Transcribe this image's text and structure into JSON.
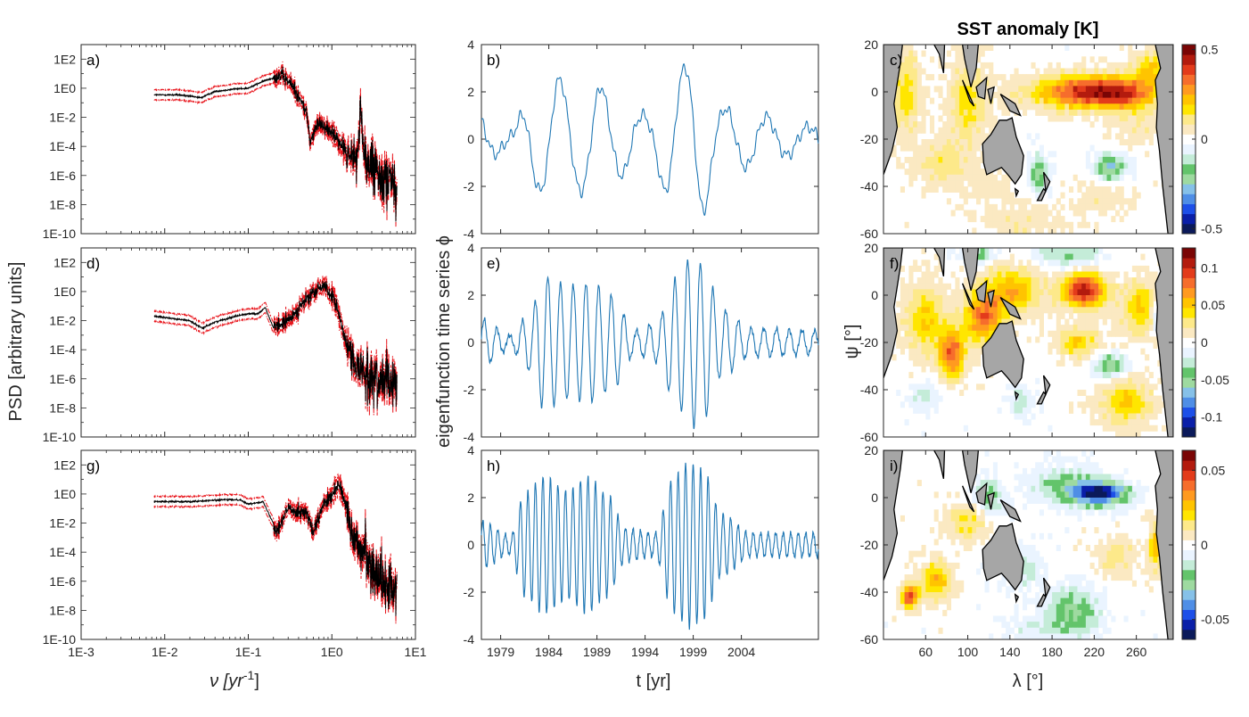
{
  "chart_data": {
    "psd": {
      "type": "line",
      "scale": "loglog",
      "xlabel": "ν [yr⁻¹]",
      "xlabel_main": "ν [yr",
      "xlabel_sup": "-1",
      "xlabel_close": "]",
      "ylabel": "PSD [arbitrary units]",
      "xlim": [
        0.001,
        10
      ],
      "ylim": [
        1e-10,
        1000
      ],
      "xticks": [
        0.001,
        0.01,
        0.1,
        1,
        10
      ],
      "xtick_labels": [
        "1E-3",
        "1E-2",
        "1E-1",
        "1E0",
        "1E1"
      ],
      "yticks": [
        1e-10,
        1e-08,
        1e-06,
        0.0001,
        0.01,
        1,
        100
      ],
      "ytick_labels": [
        "1E-10",
        "1E-8",
        "1E-6",
        "1E-4",
        "1E-2",
        "1E0",
        "1E2"
      ],
      "panels": [
        {
          "label": "a)",
          "knots": [
            [
              0.0075,
              0.35
            ],
            [
              0.015,
              0.35
            ],
            [
              0.027,
              0.22
            ],
            [
              0.04,
              0.6
            ],
            [
              0.07,
              0.9
            ],
            [
              0.1,
              1.0
            ],
            [
              0.15,
              3.0
            ],
            [
              0.25,
              8
            ],
            [
              0.35,
              1.2
            ],
            [
              0.5,
              0.02
            ],
            [
              0.55,
              0.0002
            ],
            [
              0.7,
              0.005
            ],
            [
              1.0,
              0.001
            ],
            [
              1.5,
              5e-05
            ],
            [
              2.0,
              1e-05
            ],
            [
              2.2,
              0.05
            ],
            [
              2.4,
              2e-05
            ],
            [
              3.0,
              2e-06
            ],
            [
              6.0,
              2e-07
            ]
          ]
        },
        {
          "label": "d)",
          "knots": [
            [
              0.0075,
              0.02
            ],
            [
              0.02,
              0.01
            ],
            [
              0.028,
              0.003
            ],
            [
              0.04,
              0.008
            ],
            [
              0.07,
              0.02
            ],
            [
              0.1,
              0.03
            ],
            [
              0.13,
              0.03
            ],
            [
              0.16,
              0.08
            ],
            [
              0.2,
              0.003
            ],
            [
              0.3,
              0.01
            ],
            [
              0.5,
              0.3
            ],
            [
              0.8,
              3.0
            ],
            [
              1.0,
              0.5
            ],
            [
              1.3,
              0.01
            ],
            [
              1.5,
              0.0001
            ],
            [
              2.0,
              1e-05
            ],
            [
              3.0,
              1e-06
            ],
            [
              6.0,
              5e-07
            ]
          ]
        },
        {
          "label": "g)",
          "knots": [
            [
              0.0075,
              0.3
            ],
            [
              0.02,
              0.3
            ],
            [
              0.05,
              0.4
            ],
            [
              0.08,
              0.4
            ],
            [
              0.1,
              0.2
            ],
            [
              0.15,
              0.3
            ],
            [
              0.22,
              0.003
            ],
            [
              0.3,
              0.1
            ],
            [
              0.5,
              0.05
            ],
            [
              0.6,
              0.002
            ],
            [
              0.8,
              0.2
            ],
            [
              1.0,
              0.6
            ],
            [
              1.2,
              5
            ],
            [
              1.4,
              0.5
            ],
            [
              1.8,
              0.001
            ],
            [
              2.5,
              0.0001
            ],
            [
              4.0,
              1e-06
            ],
            [
              6.0,
              2e-07
            ]
          ]
        }
      ]
    },
    "timeseries": {
      "type": "line",
      "xlabel": "t [yr]",
      "ylabel": "eigenfunction time series ϕ",
      "xlim": [
        1977,
        2012
      ],
      "ylim": [
        -4,
        4
      ],
      "xticks": [
        1979,
        1984,
        1989,
        1994,
        1999,
        2004
      ],
      "xtick_labels": [
        "1979",
        "1984",
        "1989",
        "1994",
        "1999",
        "2004"
      ],
      "yticks": [
        -4,
        -2,
        0,
        2,
        4
      ],
      "ytick_labels": [
        "-4",
        "-2",
        "0",
        "2",
        "4"
      ],
      "panels": [
        {
          "label": "b)",
          "amp_knots": [
            [
              1977,
              1.0
            ],
            [
              1980,
              0.3
            ],
            [
              1982.5,
              2.1
            ],
            [
              1984.5,
              2.6
            ],
            [
              1987,
              2.2
            ],
            [
              1989,
              2.3
            ],
            [
              1991,
              1.6
            ],
            [
              1994,
              1.0
            ],
            [
              1997.5,
              2.9
            ],
            [
              1999.3,
              3.5
            ],
            [
              2002,
              1.3
            ],
            [
              2012,
              0.5
            ]
          ],
          "period": 4.3,
          "phase": 2.1,
          "ripple": 0.3
        },
        {
          "label": "e)",
          "amp_knots": [
            [
              1977,
              1.0
            ],
            [
              1980,
              0.3
            ],
            [
              1982,
              1.2
            ],
            [
              1983.5,
              2.8
            ],
            [
              1986,
              2.4
            ],
            [
              1988.5,
              2.5
            ],
            [
              1990.5,
              2.0
            ],
            [
              1993,
              0.5
            ],
            [
              1995,
              0.8
            ],
            [
              1997.5,
              2.8
            ],
            [
              1998.7,
              3.6
            ],
            [
              2000,
              3.3
            ],
            [
              2002,
              1.4
            ],
            [
              2005,
              0.6
            ],
            [
              2012,
              0.5
            ]
          ],
          "period": 1.32,
          "phase": 0.3,
          "ripple": 0.12
        },
        {
          "label": "h)",
          "amp_knots": [
            [
              1977,
              1.0
            ],
            [
              1980,
              0.4
            ],
            [
              1981.5,
              2.2
            ],
            [
              1983.5,
              2.9
            ],
            [
              1986,
              2.3
            ],
            [
              1988,
              2.9
            ],
            [
              1990,
              2.2
            ],
            [
              1992,
              0.7
            ],
            [
              1995,
              0.5
            ],
            [
              1997,
              2.9
            ],
            [
              1998.5,
              3.5
            ],
            [
              2000,
              3.2
            ],
            [
              2002,
              1.3
            ],
            [
              2005,
              0.5
            ],
            [
              2012,
              0.5
            ]
          ],
          "period": 0.78,
          "phase": 1.2,
          "ripple": 0.1
        }
      ]
    },
    "maps": {
      "type": "heatmap",
      "title": "SST anomaly [K]",
      "xlabel": "λ [°]",
      "ylabel": "ψ [°]",
      "xlim": [
        20,
        295
      ],
      "ylim": [
        -60,
        20
      ],
      "xticks": [
        60,
        100,
        140,
        180,
        220,
        260
      ],
      "xtick_labels": [
        "60",
        "100",
        "140",
        "180",
        "220",
        "260"
      ],
      "yticks": [
        -60,
        -40,
        -20,
        0,
        20
      ],
      "ytick_labels": [
        "-60",
        "-40",
        "-20",
        "0",
        "20"
      ],
      "colormap": [
        "#0b1a5a",
        "#0a1fa8",
        "#1d4fe8",
        "#4f8ee6",
        "#86c1e8",
        "#9edaa0",
        "#63c46b",
        "#c4ecd8",
        "#eaf4ff",
        "#ffffff",
        "#fbe9c2",
        "#fde98a",
        "#ffe600",
        "#ffc400",
        "#ff9a20",
        "#f66d2c",
        "#e33b1b",
        "#b31b0e",
        "#7a0505"
      ],
      "land_color": "#a6a6a6",
      "panels": [
        {
          "label": "c)",
          "vmax": 0.5,
          "cbar_ticks": [
            0.5,
            0,
            -0.5
          ],
          "cbar_labels": [
            "0.5",
            "0",
            "-0.5"
          ],
          "blobs": [
            [
              220,
              0,
              55,
              7,
              0.48
            ],
            [
              250,
              -2,
              20,
              5,
              0.12
            ],
            [
              40,
              0,
              15,
              18,
              0.18
            ],
            [
              100,
              -5,
              20,
              18,
              0.16
            ],
            [
              75,
              -30,
              25,
              10,
              0.12
            ],
            [
              275,
              10,
              18,
              8,
              0.2
            ],
            [
              235,
              -32,
              15,
              5,
              -0.3
            ],
            [
              168,
              -35,
              8,
              8,
              -0.24
            ],
            [
              120,
              -40,
              25,
              8,
              0.06
            ],
            [
              150,
              -55,
              40,
              8,
              0.08
            ],
            [
              265,
              -15,
              25,
              8,
              0.08
            ],
            [
              225,
              -45,
              30,
              8,
              0.07
            ]
          ]
        },
        {
          "label": "f)",
          "vmax": 0.12,
          "cbar_ticks": [
            0.1,
            0.05,
            0,
            -0.05,
            -0.1
          ],
          "cbar_labels": [
            "0.1",
            "0.05",
            "0",
            "-0.05",
            "-0.1"
          ],
          "blobs": [
            [
              210,
              2,
              20,
              7,
              0.12
            ],
            [
              140,
              2,
              30,
              10,
              0.06
            ],
            [
              115,
              -10,
              18,
              10,
              0.08
            ],
            [
              85,
              -25,
              12,
              10,
              0.09
            ],
            [
              60,
              -10,
              20,
              15,
              0.05
            ],
            [
              265,
              -5,
              20,
              12,
              0.05
            ],
            [
              235,
              -30,
              15,
              5,
              -0.06
            ],
            [
              195,
              17,
              30,
              5,
              -0.04
            ],
            [
              110,
              17,
              15,
              4,
              -0.05
            ],
            [
              150,
              -45,
              10,
              6,
              -0.03
            ],
            [
              60,
              -42,
              15,
              6,
              -0.03
            ],
            [
              205,
              -20,
              20,
              6,
              0.05
            ],
            [
              250,
              -45,
              25,
              10,
              0.05
            ],
            [
              280,
              -8,
              6,
              8,
              -0.05
            ]
          ]
        },
        {
          "label": "i)",
          "vmax": 0.06,
          "cbar_ticks": [
            0.05,
            0,
            -0.05
          ],
          "cbar_labels": [
            "0.05",
            "0",
            "-0.05"
          ],
          "blobs": [
            [
              225,
              2,
              25,
              5,
              -0.065
            ],
            [
              190,
              5,
              30,
              8,
              -0.02
            ],
            [
              120,
              0,
              15,
              8,
              -0.02
            ],
            [
              100,
              -10,
              20,
              8,
              0.02
            ],
            [
              70,
              -35,
              15,
              8,
              0.03
            ],
            [
              45,
              -42,
              8,
              5,
              0.05
            ],
            [
              200,
              -48,
              25,
              10,
              -0.025
            ],
            [
              150,
              -30,
              20,
              8,
              -0.015
            ],
            [
              280,
              -20,
              8,
              10,
              0.03
            ],
            [
              240,
              -25,
              20,
              8,
              0.015
            ],
            [
              165,
              -55,
              30,
              6,
              -0.01
            ]
          ]
        }
      ]
    }
  }
}
